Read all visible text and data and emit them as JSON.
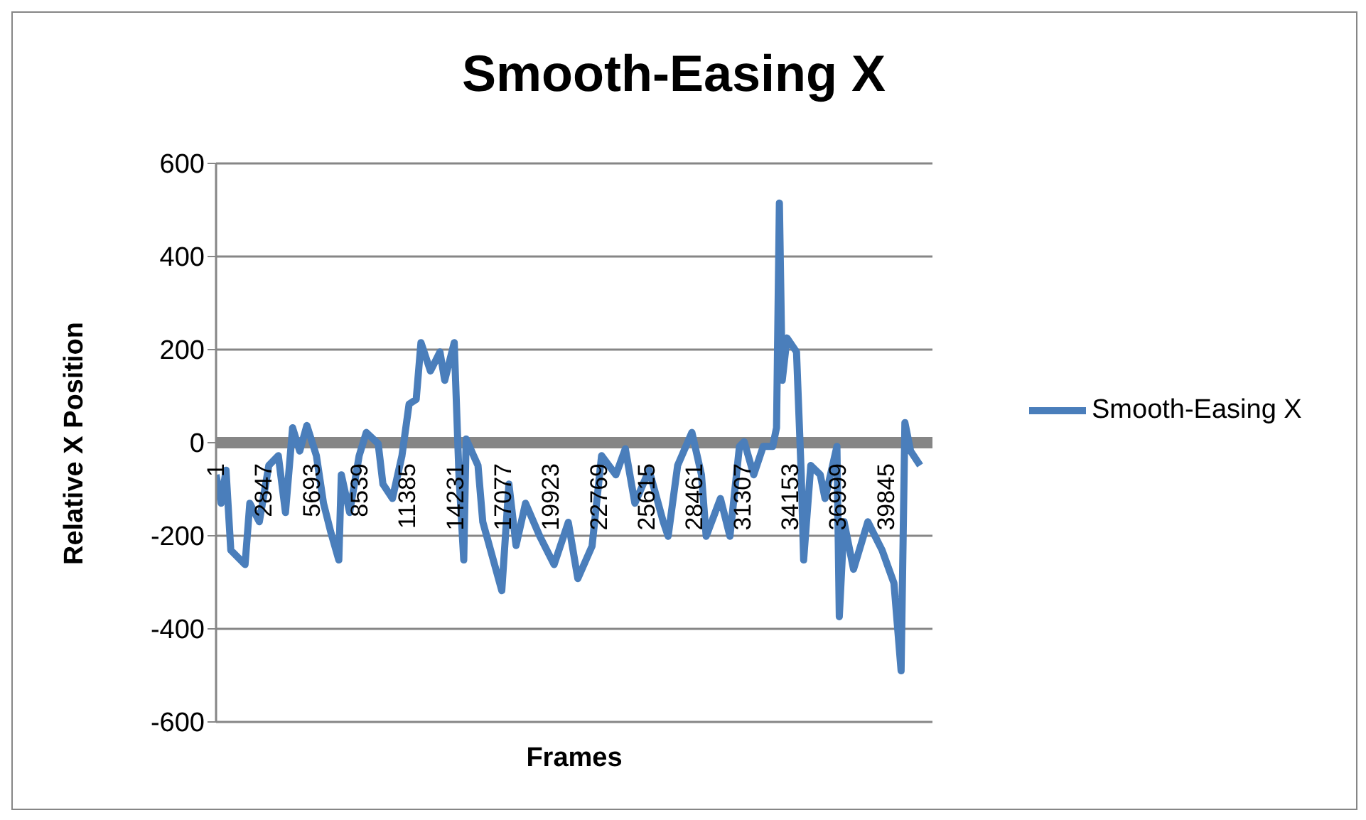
{
  "chart_data": {
    "type": "line",
    "title": "Smooth-Easing X",
    "xlabel": "Frames",
    "ylabel": "Relative X Position",
    "xlim": [
      1,
      42600
    ],
    "xticks": [
      1,
      2847,
      5693,
      8539,
      11385,
      14231,
      17077,
      19923,
      22769,
      25615,
      28461,
      31307,
      34153,
      36999,
      39845
    ],
    "ylim": [
      -600,
      600
    ],
    "yticks": [
      -600,
      -400,
      -200,
      0,
      200,
      400,
      600
    ],
    "grid": "y",
    "legend": "right",
    "marker": "none",
    "line_style": "solid",
    "series": [
      {
        "name": "Smooth-Easing X",
        "color": "#4a7ebb",
        "x": [
          1,
          300,
          594,
          877,
          1725,
          2008,
          2573,
          3138,
          3704,
          4128,
          4552,
          4976,
          5400,
          5966,
          6390,
          6814,
          7300,
          7450,
          7944,
          8510,
          8934,
          9641,
          9924,
          10489,
          11055,
          11479,
          11902,
          12185,
          12750,
          13316,
          13598,
          14164,
          14447,
          14729,
          14870,
          15577,
          15860,
          16991,
          17415,
          17839,
          18404,
          19252,
          20100,
          20946,
          21512,
          22360,
          22925,
          23773,
          24339,
          24904,
          25752,
          26600,
          26883,
          27448,
          28296,
          28864,
          29144,
          29993,
          30558,
          31123,
          31406,
          31971,
          32537,
          33102,
          33328,
          33498,
          33668,
          33950,
          34516,
          34798,
          34940,
          35364,
          35929,
          36212,
          36919,
          37060,
          37343,
          37908,
          38756,
          39604,
          40311,
          40735,
          40961,
          41300,
          41865
        ],
        "values": [
          -69,
          -130,
          -59,
          -231,
          -262,
          -130,
          -170,
          -49,
          -28,
          -150,
          32,
          -18,
          37,
          -28,
          -130,
          -191,
          -252,
          -69,
          -150,
          -28,
          22,
          -2,
          -89,
          -120,
          -28,
          83,
          93,
          215,
          154,
          195,
          134,
          215,
          -72,
          -252,
          8,
          -49,
          -170,
          -318,
          -89,
          -221,
          -130,
          -201,
          -262,
          -171,
          -292,
          -222,
          -28,
          -69,
          -13,
          -130,
          -59,
          -171,
          -201,
          -49,
          22,
          -69,
          -201,
          -120,
          -201,
          -8,
          2,
          -69,
          -8,
          -8,
          32,
          515,
          134,
          225,
          195,
          -69,
          -252,
          -49,
          -69,
          -120,
          -8,
          -374,
          -170,
          -272,
          -170,
          -231,
          -302,
          -490,
          43,
          -18,
          -49
        ]
      }
    ]
  }
}
